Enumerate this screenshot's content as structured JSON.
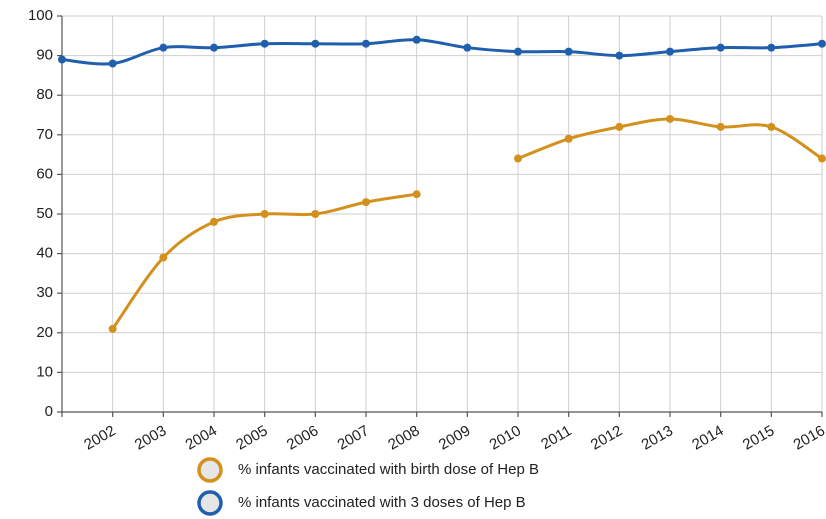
{
  "chart_data": {
    "type": "line",
    "categories": [
      null,
      "2002",
      "2003",
      "2004",
      "2005",
      "2006",
      "2007",
      "2008",
      "2009",
      "2010",
      "2011",
      "2012",
      "2013",
      "2014",
      "2015",
      "2016"
    ],
    "series": [
      {
        "name": "% infants vaccinated with birth dose of Hep B",
        "color": "#d4901c",
        "values": [
          null,
          21,
          39,
          48,
          50,
          50,
          53,
          55,
          null,
          64,
          69,
          72,
          74,
          72,
          72,
          64
        ]
      },
      {
        "name": "% infants vaccinated with 3 doses of Hep B",
        "color": "#1f5fae",
        "values": [
          89,
          88,
          92,
          92,
          93,
          93,
          93,
          94,
          92,
          91,
          91,
          90,
          91,
          92,
          92,
          93
        ]
      }
    ],
    "ylim": [
      0,
      100
    ],
    "yticks": [
      0,
      10,
      20,
      30,
      40,
      50,
      60,
      70,
      80,
      90,
      100
    ],
    "grid": true
  }
}
